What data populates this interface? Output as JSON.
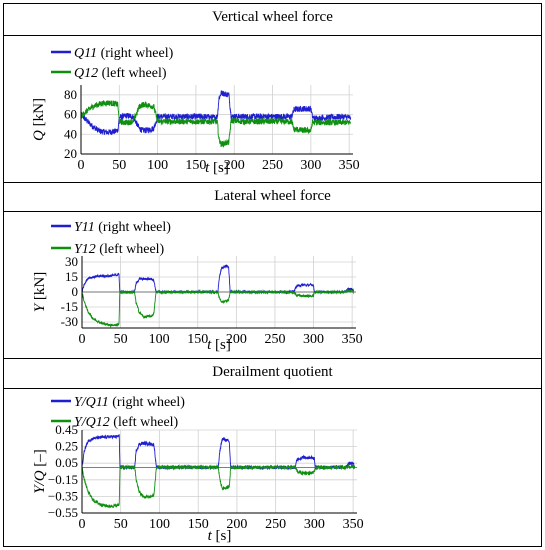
{
  "colors": {
    "right_wheel": "#1f1fcf",
    "left_wheel": "#0f8f0f",
    "grid": "#d0d0d0",
    "axis": "#000000"
  },
  "chart_data": [
    {
      "type": "line",
      "title": "Vertical wheel force",
      "xlabel_var": "t",
      "xlabel_unit": "[s]",
      "ylabel_var": "Q",
      "ylabel_unit": "[kN]",
      "xlim": [
        0,
        355
      ],
      "ylim": [
        20,
        90
      ],
      "xticks": [
        0,
        50,
        100,
        150,
        200,
        250,
        300,
        350
      ],
      "yticks": [
        20,
        40,
        60,
        80
      ],
      "grid": true,
      "legend_position": "top-left",
      "series": [
        {
          "name_var": "Q11",
          "name_suffix": "(right wheel)",
          "color": "#1f1fcf",
          "noise": 3,
          "points": [
            [
              0,
              60
            ],
            [
              5,
              56
            ],
            [
              15,
              48
            ],
            [
              25,
              43
            ],
            [
              35,
              42
            ],
            [
              45,
              43
            ],
            [
              48,
              44
            ],
            [
              50,
              57
            ],
            [
              55,
              58
            ],
            [
              60,
              59
            ],
            [
              68,
              58
            ],
            [
              72,
              52
            ],
            [
              76,
              46
            ],
            [
              80,
              44
            ],
            [
              85,
              44
            ],
            [
              90,
              45
            ],
            [
              95,
              46
            ],
            [
              100,
              58
            ],
            [
              120,
              58
            ],
            [
              140,
              58
            ],
            [
              160,
              58
            ],
            [
              175,
              57
            ],
            [
              178,
              58
            ],
            [
              180,
              76
            ],
            [
              183,
              82
            ],
            [
              188,
              81
            ],
            [
              193,
              80
            ],
            [
              196,
              58
            ],
            [
              210,
              58
            ],
            [
              230,
              58
            ],
            [
              250,
              58
            ],
            [
              270,
              58
            ],
            [
              275,
              58
            ],
            [
              278,
              65
            ],
            [
              290,
              66
            ],
            [
              300,
              66
            ],
            [
              302,
              58
            ],
            [
              305,
              56
            ],
            [
              320,
              57
            ],
            [
              340,
              58
            ],
            [
              352,
              57
            ]
          ]
        },
        {
          "name_var": "Q12",
          "name_suffix": "(left wheel)",
          "color": "#0f8f0f",
          "noise": 3,
          "points": [
            [
              0,
              58
            ],
            [
              5,
              62
            ],
            [
              15,
              68
            ],
            [
              25,
              71
            ],
            [
              35,
              72
            ],
            [
              45,
              71
            ],
            [
              48,
              70
            ],
            [
              50,
              53
            ],
            [
              55,
              52
            ],
            [
              60,
              52
            ],
            [
              68,
              53
            ],
            [
              72,
              60
            ],
            [
              76,
              68
            ],
            [
              80,
              70
            ],
            [
              85,
              70
            ],
            [
              90,
              69
            ],
            [
              95,
              68
            ],
            [
              100,
              53
            ],
            [
              120,
              53
            ],
            [
              140,
              53
            ],
            [
              160,
              53
            ],
            [
              175,
              53
            ],
            [
              178,
              52
            ],
            [
              180,
              35
            ],
            [
              183,
              30
            ],
            [
              188,
              31
            ],
            [
              193,
              32
            ],
            [
              196,
              54
            ],
            [
              210,
              53
            ],
            [
              230,
              53
            ],
            [
              250,
              53
            ],
            [
              270,
              53
            ],
            [
              275,
              53
            ],
            [
              278,
              45
            ],
            [
              290,
              44
            ],
            [
              300,
              44
            ],
            [
              302,
              52
            ],
            [
              305,
              52
            ],
            [
              320,
              52
            ],
            [
              340,
              52
            ],
            [
              352,
              52
            ]
          ]
        }
      ]
    },
    {
      "type": "line",
      "title": "Lateral wheel force",
      "xlabel_var": "t",
      "xlabel_unit": "[s]",
      "ylabel_var": "Y",
      "ylabel_unit": "[kN]",
      "xlim": [
        0,
        355
      ],
      "ylim": [
        -36,
        36
      ],
      "xticks": [
        0,
        50,
        100,
        150,
        200,
        250,
        300,
        350
      ],
      "yticks": [
        -30,
        -15,
        0,
        15,
        30
      ],
      "grid": true,
      "legend_position": "top-left",
      "series": [
        {
          "name_var": "Y11",
          "name_suffix": "(right wheel)",
          "color": "#1f1fcf",
          "noise": 1.2,
          "points": [
            [
              0,
              0
            ],
            [
              3,
              8
            ],
            [
              8,
              14
            ],
            [
              15,
              15
            ],
            [
              25,
              16
            ],
            [
              35,
              16
            ],
            [
              45,
              17
            ],
            [
              48,
              18
            ],
            [
              49,
              0
            ],
            [
              55,
              0
            ],
            [
              68,
              0
            ],
            [
              70,
              8
            ],
            [
              74,
              13
            ],
            [
              80,
              13
            ],
            [
              90,
              13
            ],
            [
              93,
              12
            ],
            [
              96,
              0
            ],
            [
              120,
              0
            ],
            [
              140,
              0
            ],
            [
              160,
              0
            ],
            [
              176,
              0
            ],
            [
              178,
              15
            ],
            [
              181,
              24
            ],
            [
              186,
              26
            ],
            [
              190,
              25
            ],
            [
              192,
              0
            ],
            [
              210,
              0
            ],
            [
              240,
              0
            ],
            [
              270,
              0
            ],
            [
              275,
              1
            ],
            [
              278,
              6
            ],
            [
              285,
              7
            ],
            [
              295,
              7
            ],
            [
              300,
              7
            ],
            [
              301,
              0
            ],
            [
              320,
              0
            ],
            [
              340,
              0
            ],
            [
              345,
              3
            ],
            [
              350,
              3
            ],
            [
              352,
              1
            ]
          ]
        },
        {
          "name_var": "Y12",
          "name_suffix": "(left wheel)",
          "color": "#0f8f0f",
          "noise": 1.2,
          "points": [
            [
              0,
              0
            ],
            [
              3,
              -10
            ],
            [
              8,
              -20
            ],
            [
              15,
              -27
            ],
            [
              25,
              -31
            ],
            [
              35,
              -33
            ],
            [
              45,
              -33
            ],
            [
              48,
              -32
            ],
            [
              49,
              0
            ],
            [
              55,
              0
            ],
            [
              68,
              0
            ],
            [
              70,
              -10
            ],
            [
              74,
              -20
            ],
            [
              80,
              -25
            ],
            [
              90,
              -24
            ],
            [
              93,
              -22
            ],
            [
              96,
              0
            ],
            [
              120,
              0
            ],
            [
              140,
              0
            ],
            [
              160,
              0
            ],
            [
              176,
              0
            ],
            [
              178,
              -6
            ],
            [
              181,
              -10
            ],
            [
              186,
              -9
            ],
            [
              190,
              -8
            ],
            [
              192,
              0
            ],
            [
              210,
              0
            ],
            [
              240,
              0
            ],
            [
              270,
              0
            ],
            [
              275,
              -1
            ],
            [
              278,
              -3
            ],
            [
              285,
              -4
            ],
            [
              295,
              -4
            ],
            [
              300,
              -4
            ],
            [
              301,
              0
            ],
            [
              320,
              0
            ],
            [
              340,
              0
            ],
            [
              345,
              1
            ],
            [
              350,
              1
            ],
            [
              352,
              0
            ]
          ]
        }
      ]
    },
    {
      "type": "line",
      "title": "Derailment quotient",
      "xlabel_var": "t",
      "xlabel_unit": "[s]",
      "ylabel_var": "Y/Q",
      "ylabel_unit": "[–]",
      "xlim": [
        0,
        355
      ],
      "ylim": [
        -0.55,
        0.45
      ],
      "xticks": [
        0,
        50,
        100,
        150,
        200,
        250,
        300,
        350
      ],
      "yticks": [
        -0.55,
        -0.35,
        -0.15,
        0.05,
        0.25,
        0.45
      ],
      "ytick_labels": [
        "−0.55",
        "−0.35",
        "−0.15",
        "0.05",
        "0.25",
        "0.45"
      ],
      "grid": true,
      "legend_position": "top-left",
      "series": [
        {
          "name_var": "Y/Q11",
          "name_suffix": "(right wheel)",
          "color": "#1f1fcf",
          "noise": 0.02,
          "points": [
            [
              0,
              0
            ],
            [
              3,
              0.2
            ],
            [
              8,
              0.32
            ],
            [
              15,
              0.35
            ],
            [
              25,
              0.36
            ],
            [
              35,
              0.37
            ],
            [
              45,
              0.37
            ],
            [
              48,
              0.38
            ],
            [
              49,
              0
            ],
            [
              55,
              0
            ],
            [
              68,
              0
            ],
            [
              70,
              0.2
            ],
            [
              74,
              0.28
            ],
            [
              80,
              0.29
            ],
            [
              90,
              0.28
            ],
            [
              93,
              0.27
            ],
            [
              96,
              0
            ],
            [
              120,
              0
            ],
            [
              140,
              0
            ],
            [
              160,
              0
            ],
            [
              176,
              0
            ],
            [
              178,
              0.2
            ],
            [
              181,
              0.34
            ],
            [
              186,
              0.33
            ],
            [
              190,
              0.31
            ],
            [
              192,
              0
            ],
            [
              210,
              0
            ],
            [
              240,
              0
            ],
            [
              270,
              0
            ],
            [
              275,
              0
            ],
            [
              278,
              0.1
            ],
            [
              285,
              0.12
            ],
            [
              295,
              0.12
            ],
            [
              300,
              0.11
            ],
            [
              301,
              0
            ],
            [
              320,
              0
            ],
            [
              340,
              0
            ],
            [
              345,
              0.05
            ],
            [
              350,
              0.05
            ],
            [
              352,
              0
            ]
          ]
        },
        {
          "name_var": "Y/Q12",
          "name_suffix": "(left wheel)",
          "color": "#0f8f0f",
          "noise": 0.02,
          "points": [
            [
              0,
              0
            ],
            [
              3,
              -0.15
            ],
            [
              8,
              -0.3
            ],
            [
              15,
              -0.4
            ],
            [
              25,
              -0.45
            ],
            [
              35,
              -0.47
            ],
            [
              45,
              -0.46
            ],
            [
              48,
              -0.45
            ],
            [
              49,
              0
            ],
            [
              55,
              0
            ],
            [
              68,
              0
            ],
            [
              70,
              -0.15
            ],
            [
              74,
              -0.3
            ],
            [
              80,
              -0.36
            ],
            [
              90,
              -0.35
            ],
            [
              93,
              -0.33
            ],
            [
              96,
              0
            ],
            [
              120,
              0
            ],
            [
              140,
              0
            ],
            [
              160,
              0
            ],
            [
              176,
              0
            ],
            [
              178,
              -0.15
            ],
            [
              181,
              -0.25
            ],
            [
              186,
              -0.25
            ],
            [
              190,
              -0.23
            ],
            [
              192,
              0
            ],
            [
              210,
              0
            ],
            [
              240,
              0
            ],
            [
              270,
              0
            ],
            [
              275,
              0
            ],
            [
              278,
              -0.05
            ],
            [
              285,
              -0.07
            ],
            [
              295,
              -0.07
            ],
            [
              300,
              -0.06
            ],
            [
              301,
              0
            ],
            [
              320,
              0
            ],
            [
              340,
              0
            ],
            [
              345,
              0.01
            ],
            [
              350,
              0.01
            ],
            [
              352,
              0
            ]
          ]
        }
      ]
    }
  ]
}
